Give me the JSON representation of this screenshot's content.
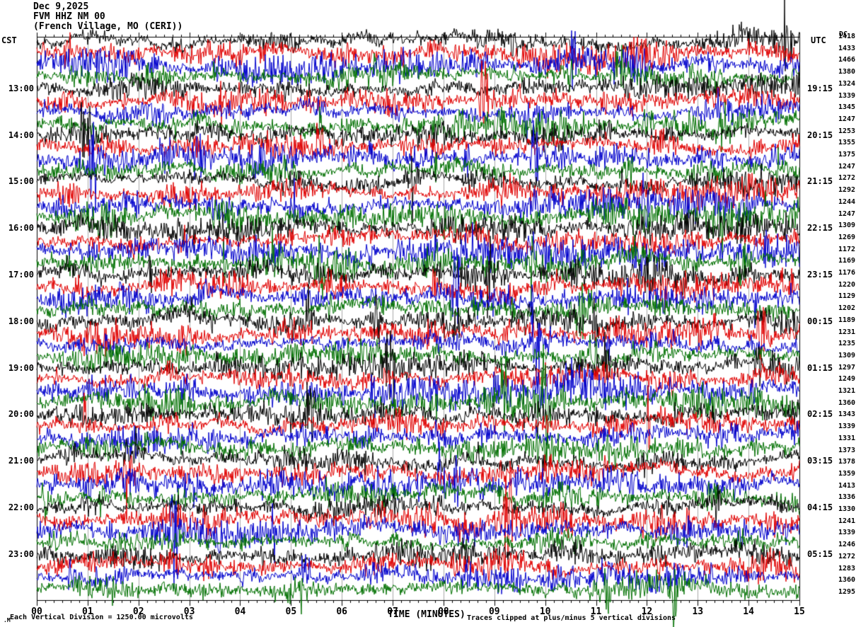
{
  "title": {
    "date": "Dec 9,2025",
    "station": "FVM HHZ NM 00",
    "location": "(French Village, MO (CERI))"
  },
  "left_axis": {
    "label": "CST",
    "hours": [
      "13:00",
      "14:00",
      "15:00",
      "16:00",
      "17:00",
      "18:00",
      "19:00",
      "20:00",
      "21:00",
      "22:00",
      "23:00"
    ]
  },
  "right_axis": {
    "label": "UTC",
    "dc_label": "DC",
    "hours": [
      "19:15",
      "20:15",
      "21:15",
      "22:15",
      "23:15",
      "00:15",
      "01:15",
      "02:15",
      "03:15",
      "04:15",
      "05:15"
    ],
    "dc_values": [
      1418,
      1433,
      1466,
      1380,
      1324,
      1339,
      1345,
      1247,
      1253,
      1355,
      1375,
      1247,
      1272,
      1292,
      1244,
      1247,
      1309,
      1269,
      1172,
      1169,
      1176,
      1220,
      1129,
      1202,
      1189,
      1231,
      1235,
      1309,
      1297,
      1249,
      1321,
      1360,
      1343,
      1339,
      1331,
      1373,
      1378,
      1359,
      1413,
      1336,
      1330,
      1241,
      1339,
      1246,
      1272,
      1283,
      1360,
      1295
    ]
  },
  "bottom_axis": {
    "label": "TIME (MINUTES)",
    "ticks": [
      "00",
      "01",
      "02",
      "03",
      "04",
      "05",
      "06",
      "07",
      "08",
      "09",
      "10",
      "11",
      "12",
      "13",
      "14",
      "15"
    ]
  },
  "footer": {
    "left": "Each Vertical Division = 1250.00 microvolts",
    "right": "Traces clipped at plus/minus 5 vertical divisions",
    "corner_mark": ".M"
  },
  "colors": {
    "trace_cycle": [
      "#000000",
      "#e00000",
      "#0000cc",
      "#007000"
    ],
    "grid": "#a8a8a8",
    "axis": "#000000",
    "background": "#ffffff"
  },
  "chart_data": {
    "type": "line",
    "subtype": "seismogram-helicorder",
    "title": "FVM HHZ NM 00 (French Village, MO (CERI)) Dec 9,2025",
    "xlabel": "TIME (MINUTES)",
    "x_ticks": [
      "00",
      "01",
      "02",
      "03",
      "04",
      "05",
      "06",
      "07",
      "08",
      "09",
      "10",
      "11",
      "12",
      "13",
      "14",
      "15"
    ],
    "x_range_minutes": [
      0,
      15
    ],
    "minutes_per_line": 15,
    "num_lines": 48,
    "lines_per_hour": 4,
    "left_hour_labels_cst": [
      "13:00",
      "14:00",
      "15:00",
      "16:00",
      "17:00",
      "18:00",
      "19:00",
      "20:00",
      "21:00",
      "22:00",
      "23:00"
    ],
    "right_hour_labels_utc": [
      "19:15",
      "20:15",
      "21:15",
      "22:15",
      "23:15",
      "00:15",
      "01:15",
      "02:15",
      "03:15",
      "04:15",
      "05:15"
    ],
    "hour_label_row_indices": [
      4,
      8,
      12,
      16,
      20,
      24,
      28,
      32,
      36,
      40,
      44
    ],
    "dc_offset_per_line": [
      1418,
      1433,
      1466,
      1380,
      1324,
      1339,
      1345,
      1247,
      1253,
      1355,
      1375,
      1247,
      1272,
      1292,
      1244,
      1247,
      1309,
      1269,
      1172,
      1169,
      1176,
      1220,
      1129,
      1202,
      1189,
      1231,
      1235,
      1309,
      1297,
      1249,
      1321,
      1360,
      1343,
      1339,
      1331,
      1373,
      1378,
      1359,
      1413,
      1336,
      1330,
      1241,
      1339,
      1246,
      1272,
      1283,
      1360,
      1295
    ],
    "trace_color_cycle": [
      "#000000",
      "#e00000",
      "#0000cc",
      "#007000"
    ],
    "scale_note": "Each Vertical Division = 1250.00 microvolts",
    "clip_note": "Traces clipped at plus/minus 5 vertical divisions",
    "clip_divisions": 5,
    "grid": "vertical gridlines every 1 minute",
    "content": "continuous high-amplitude broadband seismic noise on all 48 traces"
  }
}
